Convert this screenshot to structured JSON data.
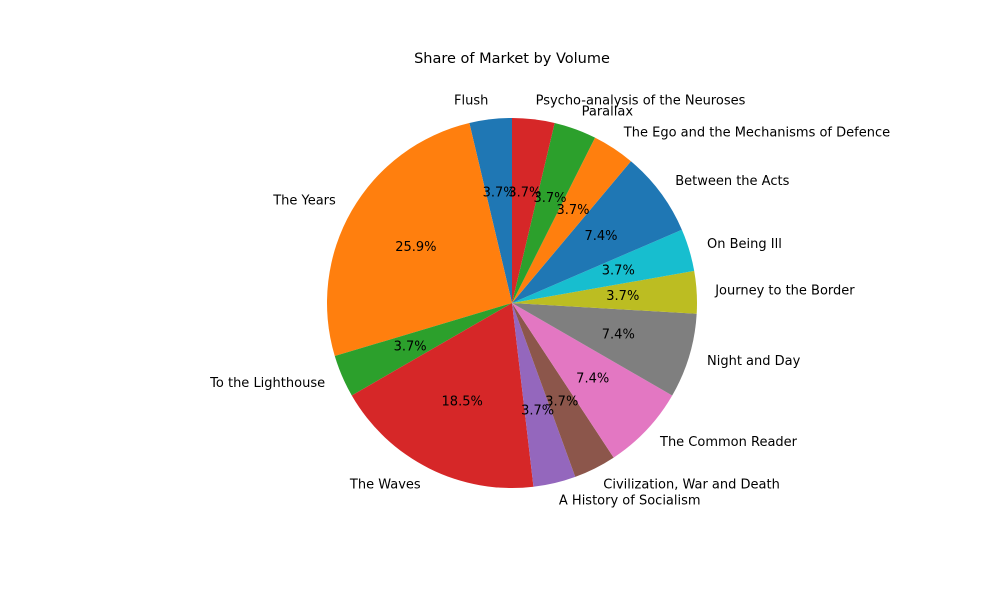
{
  "chart_data": {
    "type": "pie",
    "title": "Share of Market by Volume",
    "start_angle_deg": 90,
    "direction": "counterclockwise",
    "slices": [
      {
        "label": "Flush",
        "value": 3.7,
        "pct_label": "3.7%",
        "color": "#1f77b4"
      },
      {
        "label": "The Years",
        "value": 25.9,
        "pct_label": "25.9%",
        "color": "#ff7f0e"
      },
      {
        "label": "To the Lighthouse",
        "value": 3.7,
        "pct_label": "3.7%",
        "color": "#2ca02c"
      },
      {
        "label": "The Waves",
        "value": 18.5,
        "pct_label": "18.5%",
        "color": "#d62728"
      },
      {
        "label": "A History of Socialism",
        "value": 3.7,
        "pct_label": "3.7%",
        "color": "#9467bd"
      },
      {
        "label": "Civilization, War and Death",
        "value": 3.7,
        "pct_label": "3.7%",
        "color": "#8c564b"
      },
      {
        "label": "The Common Reader",
        "value": 7.4,
        "pct_label": "7.4%",
        "color": "#e377c2"
      },
      {
        "label": "Night and Day",
        "value": 7.4,
        "pct_label": "7.4%",
        "color": "#7f7f7f"
      },
      {
        "label": "Journey to the Border",
        "value": 3.7,
        "pct_label": "3.7%",
        "color": "#bcbd22"
      },
      {
        "label": "On Being Ill",
        "value": 3.7,
        "pct_label": "3.7%",
        "color": "#17becf"
      },
      {
        "label": "Between the Acts",
        "value": 7.4,
        "pct_label": "7.4%",
        "color": "#1f77b4"
      },
      {
        "label": "The Ego and the Mechanisms of Defence",
        "value": 3.7,
        "pct_label": "3.7%",
        "color": "#ff7f0e"
      },
      {
        "label": "Parallax",
        "value": 3.7,
        "pct_label": "3.7%",
        "color": "#2ca02c"
      },
      {
        "label": "Psycho-analysis of the Neuroses",
        "value": 3.7,
        "pct_label": "3.7%",
        "color": "#d62728"
      }
    ]
  }
}
